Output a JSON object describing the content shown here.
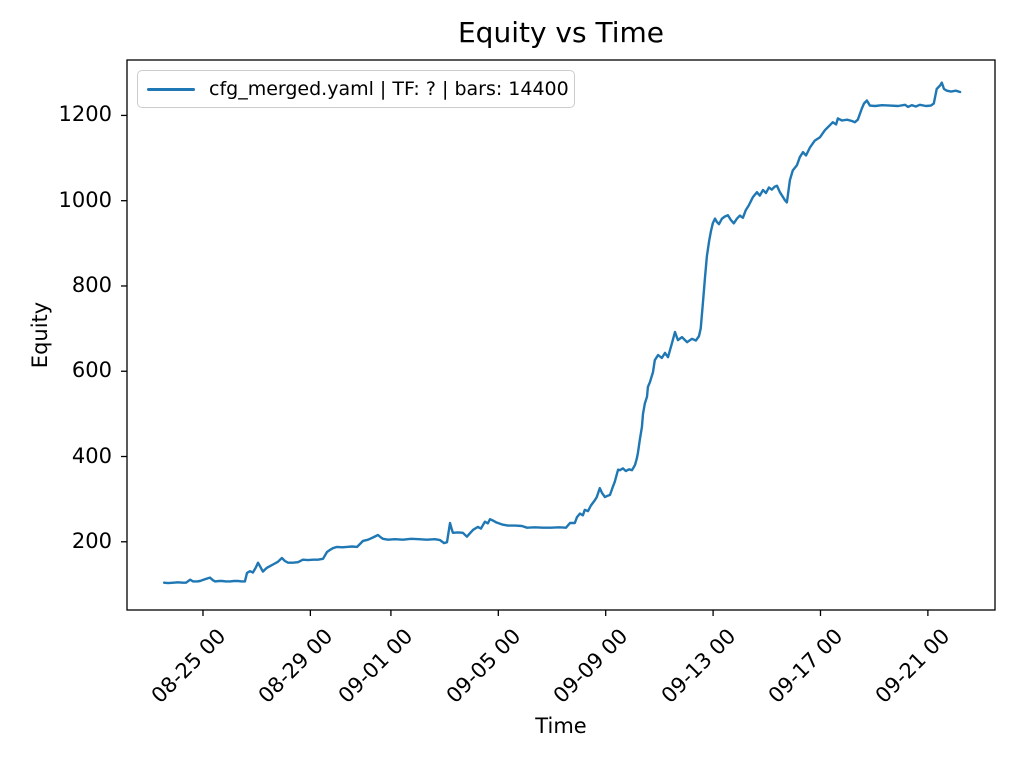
{
  "figure": {
    "background": "#ffffff"
  },
  "chart_data": {
    "type": "line",
    "title": "Equity vs Time",
    "xlabel": "Time",
    "ylabel": "Equity",
    "grid": false,
    "legend_position": "upper left",
    "x_unit": "days relative to 08-25 00:00, labels formatted MM-DD HH",
    "xlim": [
      -2.83,
      29.5
    ],
    "ylim": [
      40,
      1330
    ],
    "y_ticks": [
      200,
      400,
      600,
      800,
      1000,
      1200
    ],
    "x_ticks": [
      {
        "pos": 0,
        "label": "08-25 00"
      },
      {
        "pos": 4,
        "label": "08-29 00"
      },
      {
        "pos": 7,
        "label": "09-01 00"
      },
      {
        "pos": 11,
        "label": "09-05 00"
      },
      {
        "pos": 15,
        "label": "09-09 00"
      },
      {
        "pos": 19,
        "label": "09-13 00"
      },
      {
        "pos": 23,
        "label": "09-17 00"
      },
      {
        "pos": 27,
        "label": "09-21 00"
      }
    ],
    "colors": {
      "line": "#1f77b4",
      "spine": "#000000",
      "legend_border": "#cccccc",
      "text": "#000000"
    },
    "series": [
      {
        "name": "cfg_merged.yaml | TF: ? | bars: 14400",
        "color": "#1f77b4",
        "points": [
          [
            -1.45,
            104
          ],
          [
            -1.3,
            103
          ],
          [
            -1.1,
            104
          ],
          [
            -0.93,
            105
          ],
          [
            -0.75,
            104
          ],
          [
            -0.63,
            104
          ],
          [
            -0.48,
            111
          ],
          [
            -0.37,
            107
          ],
          [
            -0.22,
            107
          ],
          [
            -0.11,
            108
          ],
          [
            0.07,
            112
          ],
          [
            0.26,
            116
          ],
          [
            0.37,
            110
          ],
          [
            0.45,
            107
          ],
          [
            0.6,
            108
          ],
          [
            0.71,
            108
          ],
          [
            0.86,
            107
          ],
          [
            1.01,
            107
          ],
          [
            1.15,
            108
          ],
          [
            1.3,
            108
          ],
          [
            1.45,
            107
          ],
          [
            1.56,
            107
          ],
          [
            1.64,
            127
          ],
          [
            1.75,
            131
          ],
          [
            1.86,
            128
          ],
          [
            1.97,
            140
          ],
          [
            2.05,
            151
          ],
          [
            2.12,
            143
          ],
          [
            2.23,
            130
          ],
          [
            2.31,
            135
          ],
          [
            2.38,
            139
          ],
          [
            2.5,
            143
          ],
          [
            2.64,
            148
          ],
          [
            2.79,
            153
          ],
          [
            2.94,
            162
          ],
          [
            3.05,
            155
          ],
          [
            3.17,
            151
          ],
          [
            3.35,
            151
          ],
          [
            3.54,
            152
          ],
          [
            3.72,
            158
          ],
          [
            3.91,
            157
          ],
          [
            4.1,
            158
          ],
          [
            4.28,
            158
          ],
          [
            4.47,
            160
          ],
          [
            4.62,
            176
          ],
          [
            4.73,
            181
          ],
          [
            4.84,
            185
          ],
          [
            4.99,
            188
          ],
          [
            5.18,
            187
          ],
          [
            5.36,
            188
          ],
          [
            5.55,
            189
          ],
          [
            5.74,
            188
          ],
          [
            5.96,
            202
          ],
          [
            6.15,
            205
          ],
          [
            6.33,
            210
          ],
          [
            6.52,
            216
          ],
          [
            6.63,
            210
          ],
          [
            6.7,
            207
          ],
          [
            6.89,
            205
          ],
          [
            7.15,
            206
          ],
          [
            7.45,
            205
          ],
          [
            7.75,
            207
          ],
          [
            8.04,
            206
          ],
          [
            8.34,
            205
          ],
          [
            8.64,
            206
          ],
          [
            8.83,
            204
          ],
          [
            8.98,
            197
          ],
          [
            9.09,
            199
          ],
          [
            9.2,
            244
          ],
          [
            9.27,
            228
          ],
          [
            9.31,
            221
          ],
          [
            9.5,
            222
          ],
          [
            9.68,
            221
          ],
          [
            9.83,
            212
          ],
          [
            9.94,
            220
          ],
          [
            10.06,
            228
          ],
          [
            10.24,
            235
          ],
          [
            10.35,
            231
          ],
          [
            10.5,
            247
          ],
          [
            10.61,
            243
          ],
          [
            10.69,
            253
          ],
          [
            10.8,
            250
          ],
          [
            10.91,
            246
          ],
          [
            10.99,
            244
          ],
          [
            11.17,
            240
          ],
          [
            11.36,
            238
          ],
          [
            11.62,
            238
          ],
          [
            11.88,
            237
          ],
          [
            12.07,
            233
          ],
          [
            12.36,
            234
          ],
          [
            12.66,
            233
          ],
          [
            12.96,
            233
          ],
          [
            13.26,
            234
          ],
          [
            13.52,
            233
          ],
          [
            13.67,
            244
          ],
          [
            13.85,
            244
          ],
          [
            13.93,
            258
          ],
          [
            14.04,
            266
          ],
          [
            14.15,
            262
          ],
          [
            14.22,
            275
          ],
          [
            14.34,
            272
          ],
          [
            14.45,
            285
          ],
          [
            14.6,
            298
          ],
          [
            14.67,
            305
          ],
          [
            14.78,
            326
          ],
          [
            14.86,
            315
          ],
          [
            14.97,
            305
          ],
          [
            15.08,
            308
          ],
          [
            15.16,
            310
          ],
          [
            15.27,
            330
          ],
          [
            15.34,
            341
          ],
          [
            15.42,
            360
          ],
          [
            15.46,
            369
          ],
          [
            15.53,
            368
          ],
          [
            15.64,
            372
          ],
          [
            15.75,
            366
          ],
          [
            15.87,
            370
          ],
          [
            15.98,
            368
          ],
          [
            16.09,
            380
          ],
          [
            16.16,
            395
          ],
          [
            16.2,
            408
          ],
          [
            16.27,
            439
          ],
          [
            16.35,
            469
          ],
          [
            16.39,
            500
          ],
          [
            16.46,
            525
          ],
          [
            16.54,
            540
          ],
          [
            16.57,
            563
          ],
          [
            16.65,
            575
          ],
          [
            16.76,
            598
          ],
          [
            16.83,
            626
          ],
          [
            16.95,
            638
          ],
          [
            17.09,
            631
          ],
          [
            17.21,
            643
          ],
          [
            17.32,
            633
          ],
          [
            17.47,
            666
          ],
          [
            17.58,
            692
          ],
          [
            17.69,
            673
          ],
          [
            17.84,
            680
          ],
          [
            18.03,
            668
          ],
          [
            18.21,
            676
          ],
          [
            18.36,
            672
          ],
          [
            18.47,
            682
          ],
          [
            18.54,
            700
          ],
          [
            18.62,
            760
          ],
          [
            18.7,
            820
          ],
          [
            18.77,
            870
          ],
          [
            18.85,
            905
          ],
          [
            18.92,
            928
          ],
          [
            18.99,
            947
          ],
          [
            19.07,
            958
          ],
          [
            19.14,
            950
          ],
          [
            19.22,
            945
          ],
          [
            19.33,
            958
          ],
          [
            19.44,
            963
          ],
          [
            19.55,
            966
          ],
          [
            19.66,
            955
          ],
          [
            19.77,
            947
          ],
          [
            19.89,
            958
          ],
          [
            20.0,
            965
          ],
          [
            20.11,
            960
          ],
          [
            20.22,
            978
          ],
          [
            20.33,
            989
          ],
          [
            20.48,
            1008
          ],
          [
            20.63,
            1020
          ],
          [
            20.74,
            1012
          ],
          [
            20.86,
            1025
          ],
          [
            20.97,
            1018
          ],
          [
            21.08,
            1031
          ],
          [
            21.19,
            1026
          ],
          [
            21.3,
            1033
          ],
          [
            21.38,
            1035
          ],
          [
            21.49,
            1020
          ],
          [
            21.56,
            1013
          ],
          [
            21.68,
            1001
          ],
          [
            21.75,
            996
          ],
          [
            21.86,
            1048
          ],
          [
            21.97,
            1071
          ],
          [
            22.12,
            1083
          ],
          [
            22.23,
            1102
          ],
          [
            22.35,
            1114
          ],
          [
            22.46,
            1106
          ],
          [
            22.61,
            1125
          ],
          [
            22.79,
            1141
          ],
          [
            22.98,
            1149
          ],
          [
            23.16,
            1165
          ],
          [
            23.35,
            1177
          ],
          [
            23.46,
            1184
          ],
          [
            23.58,
            1179
          ],
          [
            23.65,
            1193
          ],
          [
            23.8,
            1188
          ],
          [
            23.99,
            1190
          ],
          [
            24.17,
            1187
          ],
          [
            24.28,
            1184
          ],
          [
            24.39,
            1190
          ],
          [
            24.54,
            1216
          ],
          [
            24.62,
            1228
          ],
          [
            24.73,
            1235
          ],
          [
            24.84,
            1223
          ],
          [
            25.03,
            1222
          ],
          [
            25.29,
            1224
          ],
          [
            25.59,
            1223
          ],
          [
            25.89,
            1222
          ],
          [
            26.15,
            1225
          ],
          [
            26.26,
            1220
          ],
          [
            26.4,
            1224
          ],
          [
            26.55,
            1221
          ],
          [
            26.7,
            1225
          ],
          [
            26.93,
            1222
          ],
          [
            27.11,
            1223
          ],
          [
            27.22,
            1228
          ],
          [
            27.33,
            1262
          ],
          [
            27.45,
            1270
          ],
          [
            27.52,
            1277
          ],
          [
            27.6,
            1262
          ],
          [
            27.71,
            1258
          ],
          [
            27.86,
            1256
          ],
          [
            28.04,
            1258
          ],
          [
            28.2,
            1255
          ]
        ]
      }
    ]
  }
}
